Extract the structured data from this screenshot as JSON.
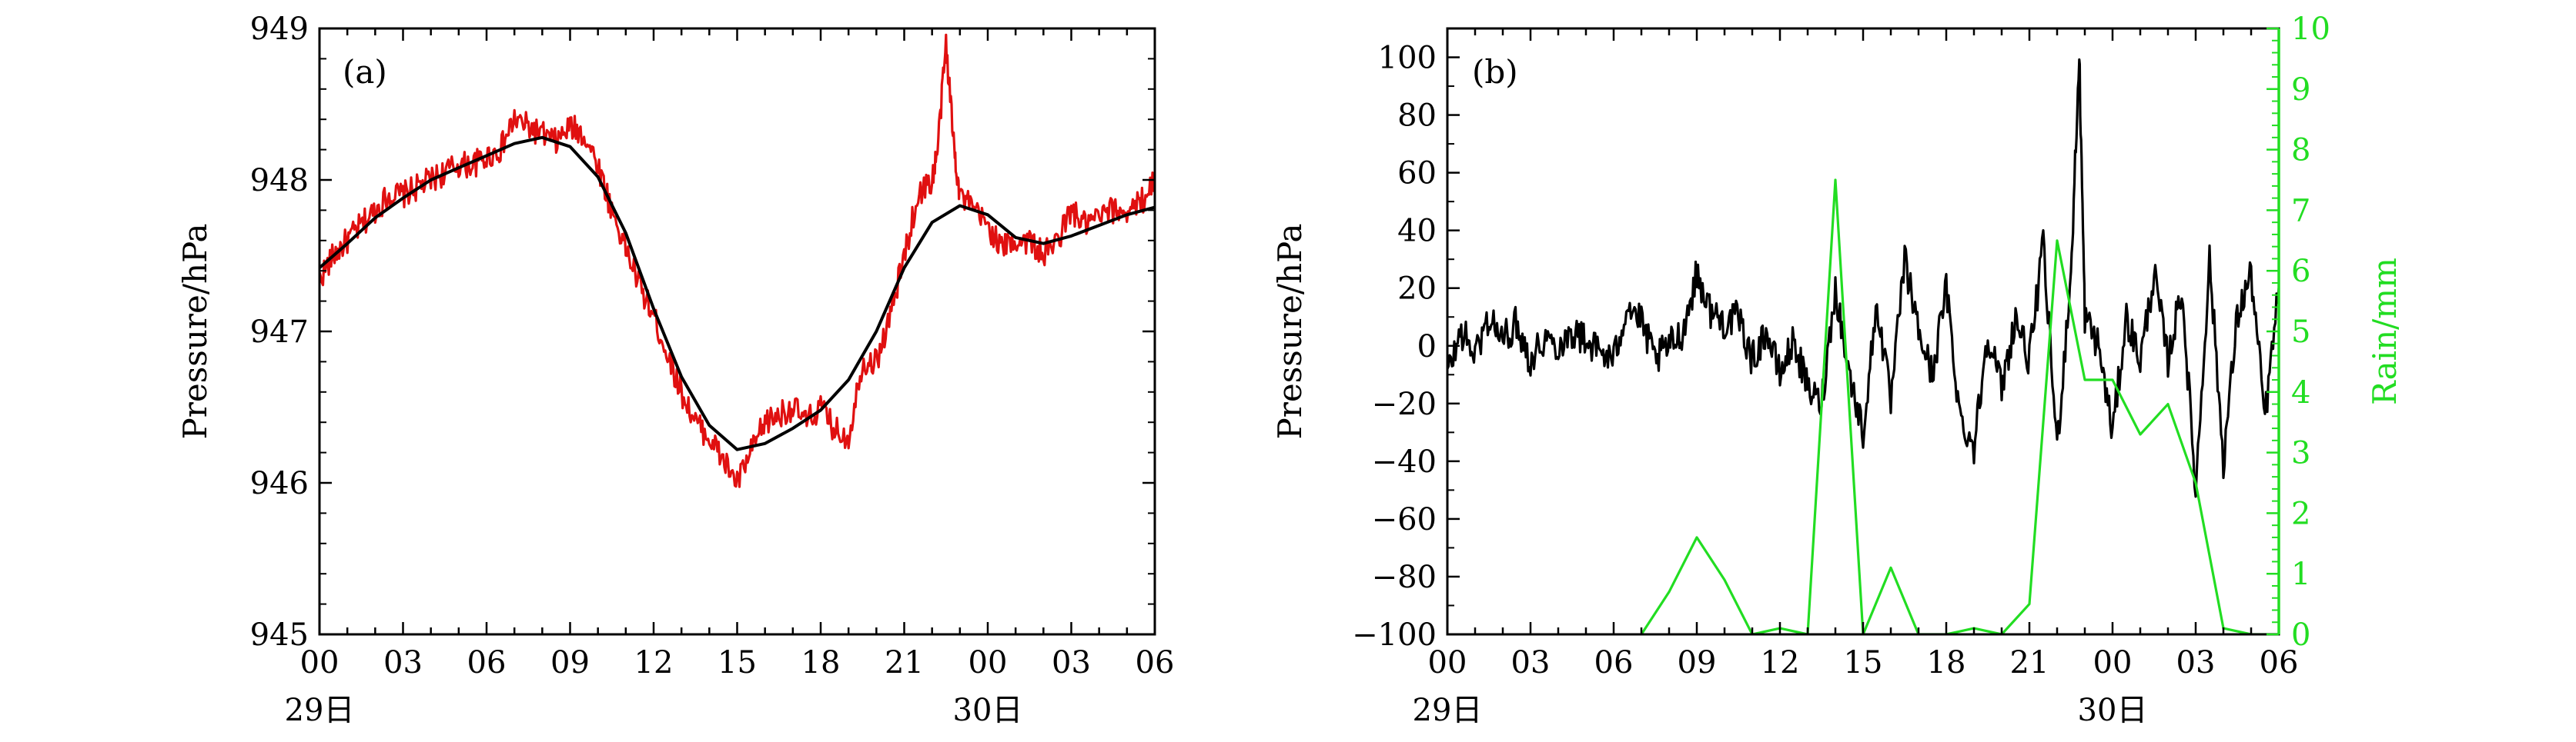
{
  "chart_data": [
    {
      "panel": "(a)",
      "type": "line",
      "ylabel": "Pressure/hPa",
      "ylim": [
        945,
        949
      ],
      "yticks": [
        "945",
        "946",
        "947",
        "948",
        "949"
      ],
      "x_ticks": [
        "00",
        "03",
        "06",
        "09",
        "12",
        "15",
        "18",
        "21",
        "00",
        "03",
        "06"
      ],
      "x_day_labels": [
        {
          "label": "29日",
          "at_hour": 0
        },
        {
          "label": "30日",
          "at_hour": 24
        }
      ],
      "x_range_hours": [
        0,
        30
      ],
      "series": [
        {
          "color": "#e01010",
          "style": "noisy",
          "x": [
            0,
            0.5,
            1,
            1.5,
            2,
            2.5,
            3,
            3.5,
            4,
            4.5,
            5,
            5.5,
            6,
            6.5,
            7,
            7.5,
            8,
            8.5,
            9,
            9.5,
            10,
            10.5,
            11,
            11.5,
            12,
            12.5,
            13,
            13.5,
            14,
            14.5,
            15,
            15.5,
            16,
            16.5,
            17,
            17.5,
            18,
            18.5,
            19,
            19.5,
            20,
            20.5,
            21,
            21.5,
            22,
            22.2,
            22.5,
            22.8,
            23,
            23.5,
            24,
            24.5,
            25,
            25.5,
            26,
            26.5,
            27,
            27.5,
            28,
            28.5,
            29,
            29.5,
            30
          ],
          "values": [
            947.35,
            947.5,
            947.6,
            947.7,
            947.8,
            947.9,
            947.9,
            947.95,
            948.0,
            948.05,
            948.1,
            948.1,
            948.15,
            948.2,
            948.4,
            948.35,
            948.3,
            948.25,
            948.35,
            948.3,
            948.1,
            947.8,
            947.55,
            947.3,
            947.1,
            946.85,
            946.6,
            946.4,
            946.3,
            946.15,
            946.0,
            946.2,
            946.4,
            946.45,
            946.5,
            946.4,
            946.5,
            946.35,
            946.3,
            946.8,
            946.8,
            947.1,
            947.5,
            947.9,
            948.0,
            948.2,
            948.9,
            948.2,
            947.9,
            947.8,
            947.7,
            947.55,
            947.6,
            947.6,
            947.5,
            947.6,
            947.8,
            947.7,
            947.75,
            947.8,
            947.8,
            947.85,
            948.0
          ]
        },
        {
          "color": "#000000",
          "style": "smooth",
          "x": [
            0,
            1,
            2,
            3,
            4,
            5,
            6,
            7,
            8,
            9,
            10,
            11,
            12,
            13,
            14,
            15,
            16,
            17,
            18,
            19,
            20,
            21,
            22,
            23,
            24,
            25,
            26,
            27,
            28,
            29,
            30
          ],
          "values": [
            947.42,
            947.58,
            947.75,
            947.88,
            948.0,
            948.08,
            948.16,
            948.24,
            948.28,
            948.22,
            948.02,
            947.65,
            947.15,
            946.7,
            946.38,
            946.22,
            946.26,
            946.36,
            946.48,
            946.68,
            947.0,
            947.42,
            947.72,
            947.83,
            947.77,
            947.62,
            947.58,
            947.63,
            947.7,
            947.77,
            947.82
          ]
        }
      ]
    },
    {
      "panel": "(b)",
      "type": "line",
      "ylabel": "Pressure/hPa",
      "ylim": [
        -100,
        110
      ],
      "yticks": [
        "−100",
        "−80",
        "−60",
        "−40",
        "−20",
        "0",
        "20",
        "40",
        "60",
        "80",
        "100"
      ],
      "y2label": "Rain/mm",
      "y2lim": [
        0,
        10
      ],
      "y2ticks": [
        "0",
        "1",
        "2",
        "3",
        "4",
        "5",
        "6",
        "7",
        "8",
        "9",
        "10"
      ],
      "x_ticks": [
        "00",
        "03",
        "06",
        "09",
        "12",
        "15",
        "18",
        "21",
        "00",
        "03",
        "06"
      ],
      "x_day_labels": [
        {
          "label": "29日",
          "at_hour": 0
        },
        {
          "label": "30日",
          "at_hour": 24
        }
      ],
      "x_range_hours": [
        0,
        30
      ],
      "series": [
        {
          "color": "#000000",
          "axis": "left",
          "style": "noisy",
          "x": [
            0,
            0.5,
            1,
            1.5,
            2,
            2.5,
            3,
            3.5,
            4,
            4.5,
            5,
            5.5,
            6,
            6.5,
            7,
            7.5,
            8,
            8.5,
            9,
            9.5,
            10,
            10.5,
            11,
            11.5,
            12,
            12.5,
            13,
            13.5,
            14,
            14.5,
            15,
            15.5,
            16,
            16.5,
            17,
            17.5,
            18,
            18.5,
            19,
            19.5,
            20,
            20.5,
            21,
            21.5,
            22,
            22.5,
            22.8,
            23,
            23.5,
            24,
            24.5,
            25,
            25.5,
            26,
            26.5,
            27,
            27.5,
            28,
            28.5,
            29,
            29.5,
            30
          ],
          "values": [
            -10,
            5,
            -3,
            10,
            2,
            8,
            -5,
            3,
            0,
            5,
            2,
            -2,
            -5,
            15,
            8,
            -5,
            0,
            5,
            25,
            12,
            8,
            10,
            -5,
            5,
            -10,
            2,
            -15,
            -20,
            20,
            -10,
            -30,
            15,
            -20,
            30,
            5,
            -10,
            20,
            -25,
            -35,
            5,
            -15,
            10,
            -5,
            35,
            -35,
            25,
            100,
            10,
            0,
            -30,
            10,
            -5,
            25,
            -5,
            20,
            -50,
            30,
            -40,
            10,
            25,
            -25,
            20
          ]
        },
        {
          "color": "#22dd22",
          "axis": "right",
          "style": "linear",
          "x": [
            7,
            8,
            9,
            10,
            11,
            12,
            13,
            14,
            15,
            16,
            17,
            18,
            19,
            20,
            21,
            22,
            23,
            24,
            25,
            26,
            27,
            28,
            29,
            30
          ],
          "values": [
            0,
            0.7,
            1.6,
            0.9,
            0,
            0.1,
            0,
            7.5,
            0,
            1.1,
            0,
            0,
            0.1,
            0,
            0.5,
            6.5,
            4.2,
            4.2,
            3.3,
            3.8,
            2.5,
            0.1,
            0,
            0
          ]
        }
      ]
    }
  ]
}
